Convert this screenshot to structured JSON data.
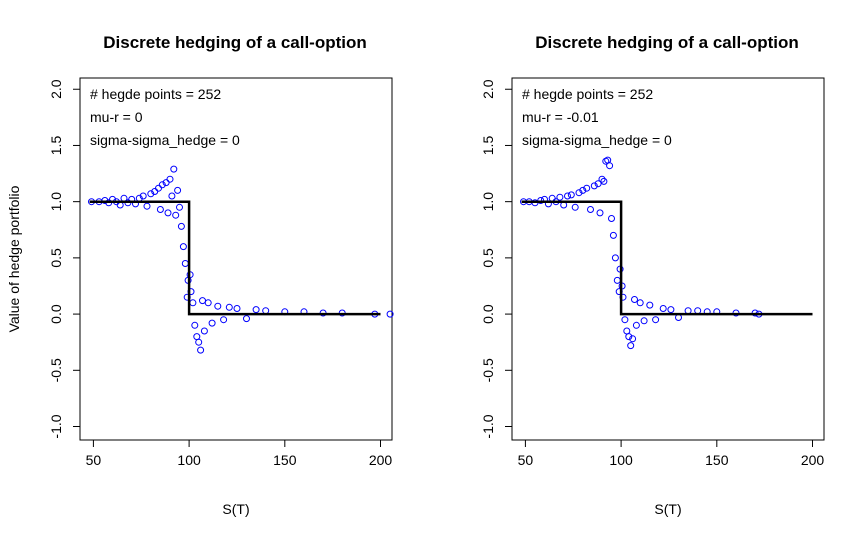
{
  "chart_data": [
    {
      "type": "scatter",
      "title": "Discrete hedging of a call-option",
      "xlabel": "S(T)",
      "ylabel": "Value of hedge portfolio",
      "xlim": [
        43,
        206
      ],
      "ylim": [
        -1.12,
        2.1
      ],
      "xticks": [
        50,
        100,
        150,
        200
      ],
      "yticks": [
        -1.0,
        -0.5,
        0.0,
        0.5,
        1.0,
        1.5,
        2.0
      ],
      "xtick_labels": [
        "50",
        "100",
        "150",
        "200"
      ],
      "ytick_labels": [
        "-1.0",
        "-0.5",
        "0.0",
        "0.5",
        "1.0",
        "1.5",
        "2.0"
      ],
      "legend": [
        "# hegde points = 252",
        "mu-r = 0",
        "sigma-sigma_hedge = 0"
      ],
      "legend_position": "top-left",
      "point_color": "#0000ff",
      "line_color": "#000000",
      "series": [
        {
          "type": "line",
          "x": [
            48,
            100,
            100,
            200
          ],
          "y": [
            1,
            1,
            0,
            0
          ]
        },
        {
          "type": "scatter",
          "x": [
            49,
            53,
            56,
            58,
            60,
            62,
            64,
            66,
            68,
            70,
            72,
            74,
            76,
            78,
            80,
            82,
            84,
            85,
            86,
            88,
            89,
            90,
            91,
            92,
            93,
            94,
            95,
            96,
            97,
            98,
            99,
            99.5,
            100.5,
            101,
            102,
            103,
            104,
            105,
            106,
            107,
            108,
            110,
            112,
            115,
            118,
            121,
            125,
            130,
            135,
            140,
            150,
            160,
            170,
            180,
            197,
            205
          ],
          "y": [
            1.0,
            1.0,
            1.01,
            0.99,
            1.02,
            1.0,
            0.97,
            1.03,
            0.99,
            1.02,
            0.98,
            1.03,
            1.05,
            0.96,
            1.07,
            1.09,
            1.12,
            0.93,
            1.15,
            1.17,
            0.9,
            1.2,
            1.05,
            1.29,
            0.88,
            1.1,
            0.95,
            0.78,
            0.6,
            0.45,
            0.15,
            0.3,
            0.35,
            0.2,
            0.1,
            -0.1,
            -0.2,
            -0.25,
            -0.32,
            0.12,
            -0.15,
            0.1,
            -0.08,
            0.07,
            -0.05,
            0.06,
            0.05,
            -0.04,
            0.04,
            0.03,
            0.02,
            0.02,
            0.01,
            0.01,
            0.0,
            0.0
          ]
        }
      ]
    },
    {
      "type": "scatter",
      "title": "Discrete hedging of a call-option",
      "xlabel": "S(T)",
      "ylabel": "",
      "xlim": [
        43,
        206
      ],
      "ylim": [
        -1.12,
        2.1
      ],
      "xticks": [
        50,
        100,
        150,
        200
      ],
      "yticks": [
        -1.0,
        -0.5,
        0.0,
        0.5,
        1.0,
        1.5,
        2.0
      ],
      "xtick_labels": [
        "50",
        "100",
        "150",
        "200"
      ],
      "ytick_labels": [
        "-1.0",
        "-0.5",
        "0.0",
        "0.5",
        "1.0",
        "1.5",
        "2.0"
      ],
      "legend": [
        "# hegde points = 252",
        "mu-r = -0.01",
        "sigma-sigma_hedge = 0"
      ],
      "legend_position": "top-left",
      "point_color": "#0000ff",
      "line_color": "#000000",
      "series": [
        {
          "type": "line",
          "x": [
            48,
            100,
            100,
            200
          ],
          "y": [
            1,
            1,
            0,
            0
          ]
        },
        {
          "type": "scatter",
          "x": [
            49,
            52,
            55,
            58,
            60,
            62,
            64,
            66,
            68,
            70,
            72,
            74,
            76,
            78,
            80,
            82,
            84,
            86,
            88,
            89,
            90,
            91,
            92,
            93,
            94,
            95,
            96,
            97,
            98,
            99,
            99.5,
            100.5,
            101,
            102,
            103,
            104,
            105,
            106,
            107,
            108,
            110,
            112,
            115,
            118,
            122,
            126,
            130,
            135,
            140,
            145,
            150,
            160,
            170,
            172
          ],
          "y": [
            1.0,
            1.0,
            0.99,
            1.01,
            1.02,
            0.98,
            1.03,
            1.0,
            1.04,
            0.97,
            1.05,
            1.06,
            0.95,
            1.08,
            1.1,
            1.12,
            0.93,
            1.14,
            1.16,
            0.9,
            1.2,
            1.18,
            1.36,
            1.37,
            1.32,
            0.85,
            0.7,
            0.5,
            0.3,
            0.2,
            0.4,
            0.25,
            0.15,
            -0.05,
            -0.15,
            -0.2,
            -0.28,
            -0.22,
            0.13,
            -0.1,
            0.1,
            -0.06,
            0.08,
            -0.05,
            0.05,
            0.04,
            -0.03,
            0.03,
            0.03,
            0.02,
            0.02,
            0.01,
            0.01,
            0.0
          ]
        }
      ]
    }
  ]
}
